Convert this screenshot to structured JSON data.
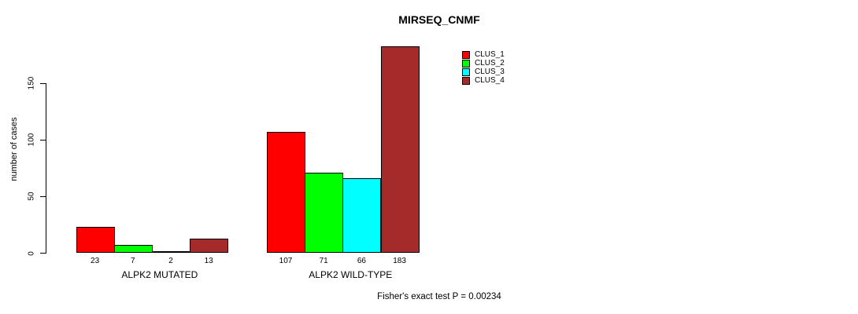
{
  "chart_data": {
    "type": "bar",
    "title": "MIRSEQ_CNMF",
    "ylabel": "number of cases",
    "xlabel": "",
    "yticks": [
      0,
      50,
      100,
      150
    ],
    "ylim": [
      0,
      190
    ],
    "grid": false,
    "legend_position": "top-right-inside",
    "categories": [
      "ALPK2 MUTATED",
      "ALPK2 WILD-TYPE"
    ],
    "series": [
      {
        "name": "CLUS_1",
        "color": "#ff0000",
        "values": [
          23,
          107
        ]
      },
      {
        "name": "CLUS_2",
        "color": "#00ff00",
        "values": [
          7,
          71
        ]
      },
      {
        "name": "CLUS_3",
        "color": "#00ffff",
        "values": [
          2,
          66
        ]
      },
      {
        "name": "CLUS_4",
        "color": "#a52a2a",
        "values": [
          13,
          183
        ]
      }
    ],
    "bar_value_labels_shown": true,
    "annotation": "Fisher's exact test P = 0.00234"
  },
  "colors": {
    "background": "#ffffff",
    "axis": "#000000",
    "text": "#000000"
  }
}
